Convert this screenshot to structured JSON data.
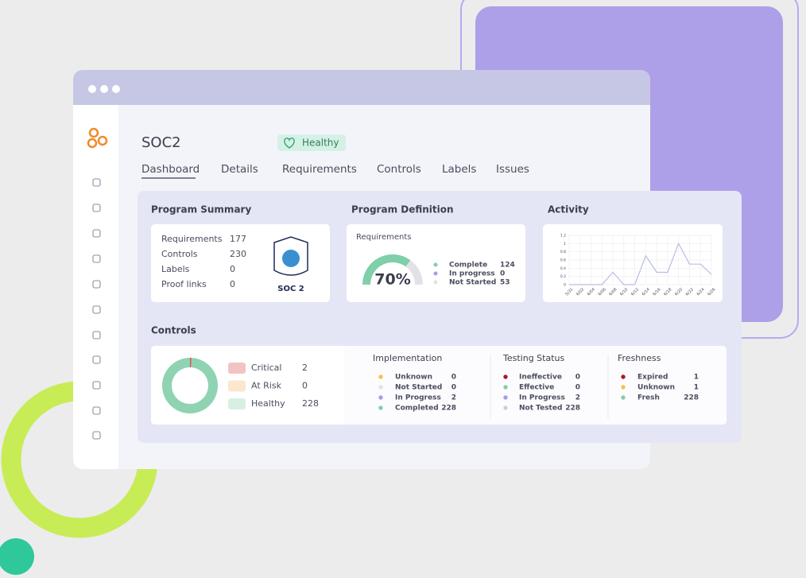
{
  "header": {
    "title": "SOC2",
    "status": "Healthy"
  },
  "tabs": [
    "Dashboard",
    "Details",
    "Requirements",
    "Controls",
    "Labels",
    "Issues"
  ],
  "program_summary": {
    "title": "Program Summary",
    "rows": [
      {
        "label": "Requirements",
        "value": 177
      },
      {
        "label": "Controls",
        "value": 230
      },
      {
        "label": "Labels",
        "value": 0
      },
      {
        "label": "Proof links",
        "value": 0
      }
    ],
    "badge": "SOC 2"
  },
  "program_definition": {
    "title": "Program Definition",
    "subtitle": "Requirements",
    "gauge_label": "70%",
    "legend": [
      {
        "label": "Complete",
        "value": 124,
        "color": "#7fcfa8"
      },
      {
        "label": "In progress",
        "value": 0,
        "color": "#a99be6"
      },
      {
        "label": "Not Started",
        "value": 53,
        "color": "#e2e2e6"
      }
    ]
  },
  "activity": {
    "title": "Activity",
    "type": "line",
    "categories": [
      "5/31",
      "6/02",
      "6/04",
      "6/06",
      "6/08",
      "6/10",
      "6/12",
      "6/14",
      "6/16",
      "6/18",
      "6/20",
      "6/22",
      "6/24",
      "6/26"
    ],
    "values": [
      0,
      0,
      0,
      0,
      0.3,
      0,
      0,
      0.7,
      0.3,
      0.3,
      1,
      0.5,
      0.5,
      0.25
    ],
    "ylim": [
      0,
      1.2
    ],
    "yticks": [
      0,
      0.2,
      0.4,
      0.6,
      0.8,
      1,
      1.2
    ],
    "color": "#b9bde0",
    "grid": true
  },
  "controls": {
    "title": "Controls",
    "severity": [
      {
        "label": "Critical",
        "value": 2,
        "color": "#d9534f"
      },
      {
        "label": "At Risk",
        "value": 0,
        "color": "#f5b76d"
      },
      {
        "label": "Healthy",
        "value": 228,
        "color": "#8fd3b2"
      }
    ],
    "groups": [
      {
        "title": "Implementation",
        "items": [
          {
            "label": "Unknown",
            "value": 0,
            "color": "#f5c04d"
          },
          {
            "label": "Not Started",
            "value": 0,
            "color": "#e2e2e6"
          },
          {
            "label": "In Progress",
            "value": 2,
            "color": "#a99be6"
          },
          {
            "label": "Completed",
            "value": 228,
            "color": "#7fcfa8"
          }
        ]
      },
      {
        "title": "Testing Status",
        "items": [
          {
            "label": "Ineffective",
            "value": 0,
            "color": "#b0142a"
          },
          {
            "label": "Effective",
            "value": 0,
            "color": "#7fcfa8"
          },
          {
            "label": "In Progress",
            "value": 2,
            "color": "#a99be6"
          },
          {
            "label": "Not Tested",
            "value": 228,
            "color": "#cfcfd4"
          }
        ]
      },
      {
        "title": "Freshness",
        "items": [
          {
            "label": "Expired",
            "value": 1,
            "color": "#b0142a"
          },
          {
            "label": "Unknown",
            "value": 1,
            "color": "#f5c04d"
          },
          {
            "label": "Fresh",
            "value": 228,
            "color": "#7fcfa8"
          }
        ]
      }
    ]
  }
}
